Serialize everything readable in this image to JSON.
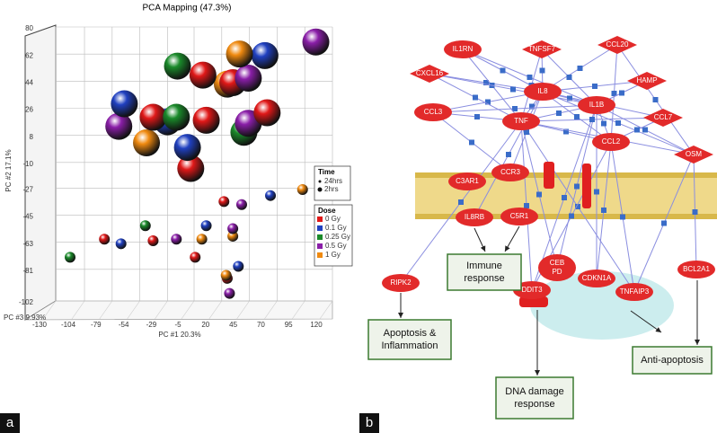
{
  "panels": [
    "a",
    "b"
  ],
  "chart_data": {
    "type": "scatter",
    "title": "PCA Mapping (47.3%)",
    "x_label": "PC #1 20.3%",
    "y_label": "PC #2 17.1%",
    "z_label": "PC #3 9.93%",
    "xlim": [
      -130,
      120
    ],
    "xticks": [
      -130,
      -104,
      -79,
      -54,
      -29,
      -5,
      20,
      45,
      70,
      95,
      120
    ],
    "ylim": [
      -102,
      80
    ],
    "yticks": [
      80,
      62,
      44,
      26,
      8,
      -10,
      -27,
      -45,
      -63,
      -81,
      -102
    ],
    "grid": true,
    "time_title": "Time",
    "time_names": [
      "24hrs",
      "2hrs"
    ],
    "dose_title": "Dose",
    "series": [
      {
        "name": "0 Gy",
        "color": "#e01818",
        "x": [
          3,
          30,
          -42,
          6,
          61,
          -8,
          22,
          -86,
          -42,
          -4,
          25
        ],
        "values": [
          48,
          43,
          20,
          18,
          23,
          -14,
          -36,
          -61,
          -62,
          -73,
          -87
        ],
        "time": [
          "24hrs",
          "24hrs",
          "24hrs",
          "24hrs",
          "24hrs",
          "24hrs",
          "2hrs",
          "2hrs",
          "2hrs",
          "2hrs",
          "2hrs"
        ]
      },
      {
        "name": "0.1 Gy",
        "color": "#2040c0",
        "x": [
          59,
          -68,
          -29,
          -11,
          64,
          6,
          -71,
          35
        ],
        "values": [
          61,
          29,
          17,
          0,
          -32,
          -52,
          -64,
          -79
        ],
        "time": [
          "24hrs",
          "24hrs",
          "24hrs",
          "24hrs",
          "2hrs",
          "2hrs",
          "2hrs",
          "2hrs"
        ]
      },
      {
        "name": "0.25 Gy",
        "color": "#1a8a2a",
        "x": [
          -20,
          -21,
          40,
          -49,
          -117
        ],
        "values": [
          54,
          20,
          10,
          -52,
          -73
        ],
        "time": [
          "24hrs",
          "24hrs",
          "24hrs",
          "2hrs",
          "2hrs"
        ]
      },
      {
        "name": "0.5 Gy",
        "color": "#8a1ea8",
        "x": [
          105,
          44,
          -73,
          44,
          38,
          30,
          -21,
          27
        ],
        "values": [
          70,
          46,
          14,
          16,
          -38,
          -54,
          -61,
          -97
        ],
        "time": [
          "24hrs",
          "24hrs",
          "24hrs",
          "24hrs",
          "2hrs",
          "2hrs",
          "2hrs",
          "2hrs"
        ]
      },
      {
        "name": "1 Gy",
        "color": "#f08a10",
        "x": [
          36,
          25,
          -48,
          93,
          2,
          30,
          24
        ],
        "values": [
          62,
          42,
          3,
          -28,
          -61,
          -59,
          -85
        ],
        "time": [
          "24hrs",
          "24hrs",
          "24hrs",
          "2hrs",
          "2hrs",
          "2hrs",
          "2hrs"
        ]
      }
    ]
  },
  "diagram": {
    "nodes": [
      {
        "lines": [
          "IL1RN"
        ],
        "shape": "ellipse"
      },
      {
        "lines": [
          "TNFSF7"
        ],
        "shape": "diamond"
      },
      {
        "lines": [
          "CCL20"
        ],
        "shape": "diamond"
      },
      {
        "lines": [
          "HAMP"
        ],
        "shape": "diamond"
      },
      {
        "lines": [
          "CXCL16"
        ],
        "shape": "diamond"
      },
      {
        "lines": [
          "IL8"
        ],
        "shape": "ellipse"
      },
      {
        "lines": [
          "CCL7"
        ],
        "shape": "diamond"
      },
      {
        "lines": [
          "CCL3"
        ],
        "shape": "ellipse"
      },
      {
        "lines": [
          "TNF"
        ],
        "shape": "ellipse"
      },
      {
        "lines": [
          "IL1B"
        ],
        "shape": "ellipse"
      },
      {
        "lines": [
          "CCL2"
        ],
        "shape": "ellipse"
      },
      {
        "lines": [
          "OSM"
        ],
        "shape": "diamond"
      },
      {
        "lines": [
          "C3AR1"
        ],
        "shape": "ellipse"
      },
      {
        "lines": [
          "CCR3"
        ],
        "shape": "ellipse"
      },
      {
        "lines": [
          "IL8RB"
        ],
        "shape": "ellipse"
      },
      {
        "lines": [
          "C5R1"
        ],
        "shape": "ellipse"
      },
      {
        "lines": [
          "RIPK2"
        ],
        "shape": "ellipse"
      },
      {
        "lines": [
          "CEB",
          "PD"
        ],
        "shape": "ellipse"
      },
      {
        "lines": [
          "CDKN1A"
        ],
        "shape": "ellipse"
      },
      {
        "lines": [
          "DDIT3"
        ],
        "shape": "ellipse"
      },
      {
        "lines": [
          "TNFAIP3"
        ],
        "shape": "ellipse"
      },
      {
        "lines": [
          "BCL2A1"
        ],
        "shape": "ellipse"
      }
    ],
    "boxes": [
      {
        "lines": [
          "Immune",
          "response"
        ]
      },
      {
        "lines": [
          "Apoptosis &",
          "Inflammation"
        ]
      },
      {
        "lines": [
          "DNA damage",
          "response"
        ]
      },
      {
        "lines": [
          "Anti-apoptosis"
        ]
      }
    ]
  }
}
